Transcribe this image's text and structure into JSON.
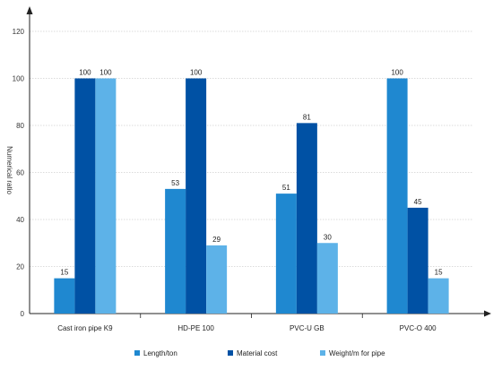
{
  "chart_data": {
    "type": "bar",
    "ylabel": "Numerical ratio",
    "xlabel": "",
    "title": "",
    "ylim": [
      0,
      120
    ],
    "yticks": [
      0,
      20,
      40,
      60,
      80,
      100,
      120
    ],
    "grid": true,
    "legend_position": "bottom",
    "categories": [
      "Cast iron pipe K9",
      "HD-PE 100",
      "PVC-U GB",
      "PVC-O 400"
    ],
    "series": [
      {
        "name": "Length/ton",
        "color": "#1f88d0",
        "values": [
          15,
          53,
          51,
          100
        ]
      },
      {
        "name": "Material cost",
        "color": "#0051a4",
        "values": [
          100,
          100,
          81,
          45
        ]
      },
      {
        "name": "Weight/m for pipe",
        "color": "#5db2e8",
        "values": [
          100,
          29,
          30,
          15
        ]
      }
    ]
  }
}
